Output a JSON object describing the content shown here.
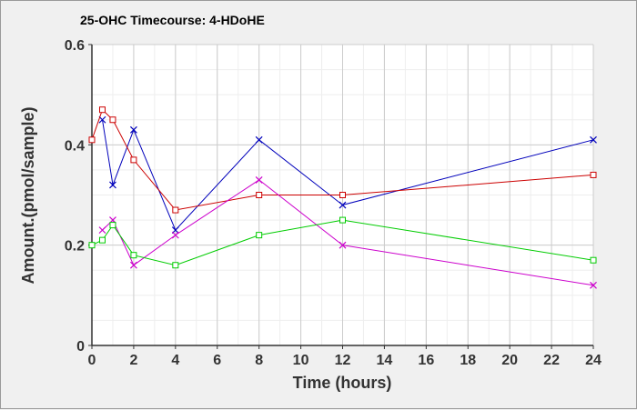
{
  "chart_data": {
    "type": "line",
    "title": "25-OHC Timecourse: 4-HDoHE",
    "xlabel": "Time (hours)",
    "ylabel": "Amount.(pmol/sample)",
    "xlim": [
      0,
      24
    ],
    "ylim": [
      0,
      0.6
    ],
    "x_ticks": [
      0,
      2,
      4,
      6,
      8,
      10,
      12,
      14,
      16,
      18,
      20,
      22,
      24
    ],
    "y_ticks": [
      {
        "value": 0,
        "label": "0"
      },
      {
        "value": 0.2,
        "label": "0.2"
      },
      {
        "value": 0.4,
        "label": "0.4"
      },
      {
        "value": 0.6,
        "label": "0.6"
      }
    ],
    "x_minor_step": 1,
    "y_minor_step": 0.05,
    "grid": true,
    "series": [
      {
        "color": "#0000bb",
        "marker": "x",
        "x": [
          0.5,
          1,
          2,
          4,
          8,
          12,
          24
        ],
        "values": [
          0.45,
          0.32,
          0.43,
          0.23,
          0.41,
          0.28,
          0.41
        ]
      },
      {
        "color": "#cc0000",
        "marker": "square",
        "x": [
          0,
          0.5,
          1,
          2,
          4,
          8,
          12,
          24
        ],
        "values": [
          0.41,
          0.47,
          0.45,
          0.37,
          0.27,
          0.3,
          0.3,
          0.34
        ]
      },
      {
        "color": "#cc00cc",
        "marker": "x",
        "x": [
          0.5,
          1,
          2,
          4,
          8,
          12,
          24
        ],
        "values": [
          0.23,
          0.25,
          0.16,
          0.22,
          0.33,
          0.2,
          0.12
        ]
      },
      {
        "color": "#00cc00",
        "marker": "square",
        "x": [
          0,
          0.5,
          1,
          2,
          4,
          8,
          12,
          24
        ],
        "values": [
          0.2,
          0.21,
          0.24,
          0.18,
          0.16,
          0.22,
          0.25,
          0.17
        ]
      }
    ]
  }
}
